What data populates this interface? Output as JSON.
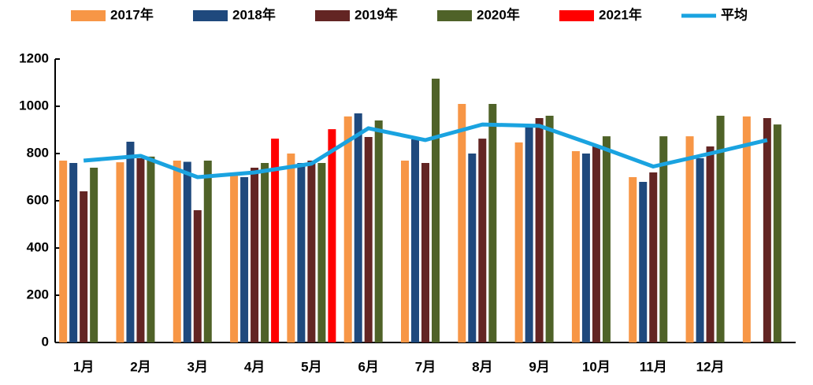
{
  "chart_data": {
    "type": "bar",
    "categories": [
      "1月",
      "2月",
      "3月",
      "4月",
      "5月",
      "6月",
      "7月",
      "8月",
      "9月",
      "10月",
      "11月",
      "12月",
      null
    ],
    "series": [
      {
        "name": "2017年",
        "color": "#f79646",
        "values": [
          770,
          763,
          770,
          720,
          800,
          957,
          770,
          1010,
          847,
          810,
          700,
          873,
          957
        ]
      },
      {
        "name": "2018年",
        "color": "#1f497d",
        "values": [
          760,
          850,
          765,
          700,
          760,
          970,
          860,
          800,
          915,
          800,
          680,
          780,
          null
        ]
      },
      {
        "name": "2019年",
        "color": "#632523",
        "values": [
          640,
          780,
          560,
          740,
          770,
          870,
          760,
          863,
          950,
          830,
          720,
          830,
          950
        ]
      },
      {
        "name": "2020年",
        "color": "#4f6228",
        "values": [
          740,
          787,
          770,
          760,
          760,
          940,
          1117,
          1010,
          960,
          873,
          873,
          960,
          923
        ]
      },
      {
        "name": "2021年",
        "color": "#ff0000",
        "values": [
          null,
          null,
          null,
          863,
          903,
          null,
          null,
          null,
          null,
          null,
          null,
          null,
          null
        ]
      },
      {
        "name": "平均",
        "color": "#1aa3e0",
        "line": true,
        "values": [
          770,
          790,
          700,
          720,
          757,
          907,
          857,
          923,
          917,
          833,
          745,
          800,
          857
        ]
      }
    ],
    "ylim": [
      0,
      1200
    ],
    "yticks": [
      0,
      200,
      400,
      600,
      800,
      1000,
      1200
    ]
  }
}
